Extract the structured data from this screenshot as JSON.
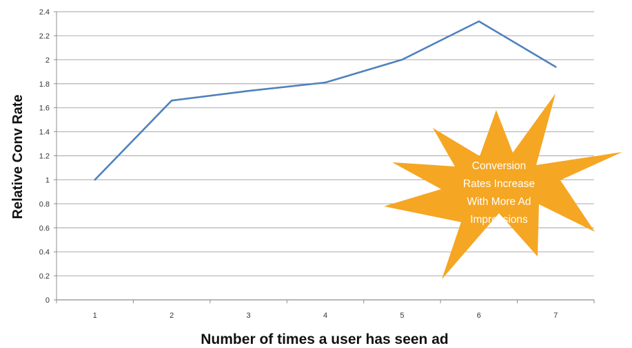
{
  "chart_data": {
    "type": "line",
    "title": "",
    "xlabel": "Number of times a user has seen ad",
    "ylabel": "Relative Conv Rate",
    "x": [
      1,
      2,
      3,
      4,
      5,
      6,
      7
    ],
    "series": [
      {
        "values": [
          1.0,
          1.66,
          1.74,
          1.81,
          2.0,
          2.32,
          1.94
        ]
      }
    ],
    "ylim": [
      0,
      2.4
    ],
    "yticks": [
      "0",
      "0.2",
      "0.4",
      "0.6",
      "0.8",
      "1",
      "1.2",
      "1.4",
      "1.6",
      "1.8",
      "2",
      "2.2",
      "2.4"
    ],
    "xticks": [
      "1",
      "2",
      "3",
      "4",
      "5",
      "6",
      "7"
    ],
    "grid": true,
    "legend": "none",
    "line_color": "#4f81bd",
    "grid_color": "#b3b3b3",
    "callout": {
      "lines": [
        "Conversion",
        "Rates Increase",
        "With More Ad",
        "Impressions"
      ],
      "color": "#f5a623",
      "text_color": "#ffffff"
    }
  }
}
